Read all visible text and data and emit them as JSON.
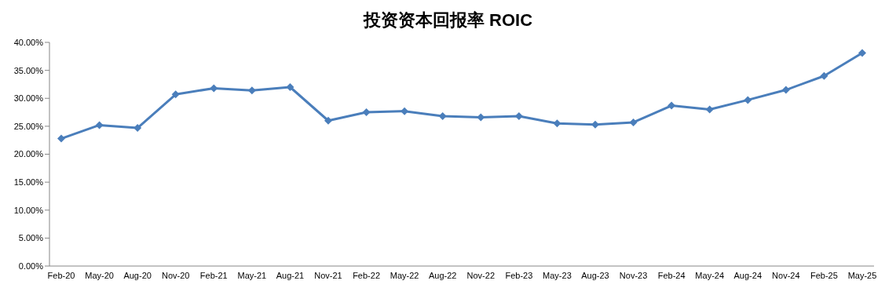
{
  "chart_data": {
    "type": "line",
    "title": "投资资本回报率 ROIC",
    "categories": [
      "Feb-20",
      "May-20",
      "Aug-20",
      "Nov-20",
      "Feb-21",
      "May-21",
      "Aug-21",
      "Nov-21",
      "Feb-22",
      "May-22",
      "Aug-22",
      "Nov-22",
      "Feb-23",
      "May-23",
      "Aug-23",
      "Nov-23",
      "Feb-24",
      "May-24",
      "Aug-24",
      "Nov-24",
      "Feb-25",
      "May-25"
    ],
    "series": [
      {
        "color": "#4a7ebb",
        "values": [
          22.8,
          25.2,
          24.7,
          30.7,
          31.8,
          31.4,
          32.0,
          26.0,
          27.5,
          27.7,
          26.8,
          26.6,
          26.8,
          25.5,
          25.3,
          25.7,
          28.7,
          28.0,
          29.7,
          31.5,
          34.0,
          38.1
        ]
      }
    ],
    "ylim": [
      0,
      40
    ],
    "yticks": [
      {
        "value": 0,
        "label": "0.00%"
      },
      {
        "value": 5,
        "label": "5.00%"
      },
      {
        "value": 10,
        "label": "10.00%"
      },
      {
        "value": 15,
        "label": "15.00%"
      },
      {
        "value": 20,
        "label": "20.00%"
      },
      {
        "value": 25,
        "label": "25.00%"
      },
      {
        "value": 30,
        "label": "30.00%"
      },
      {
        "value": 35,
        "label": "35.00%"
      },
      {
        "value": 40,
        "label": "40.00%"
      }
    ],
    "grid": false,
    "legend": false,
    "marker": "diamond",
    "line_style": "solid"
  }
}
